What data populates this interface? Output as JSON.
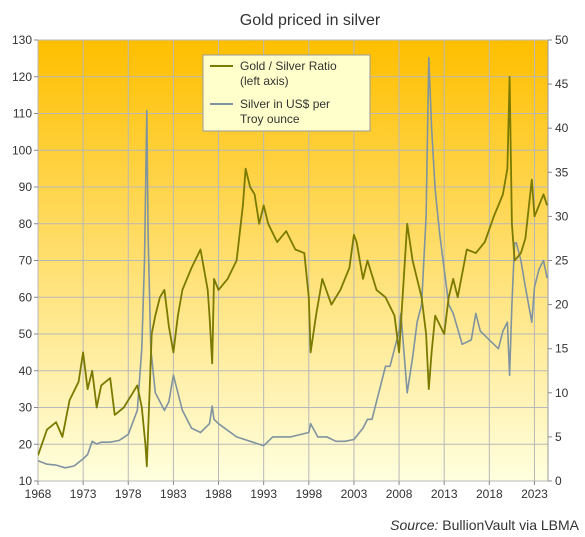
{
  "chart_data": {
    "type": "line",
    "title": "Gold priced in silver",
    "source_label": "Source:",
    "source_text": "BullionVault via LBMA",
    "x_ticks": [
      "1968",
      "1973",
      "1978",
      "1983",
      "1988",
      "1993",
      "1998",
      "2003",
      "2008",
      "2013",
      "2018",
      "2023"
    ],
    "xlim": [
      1968,
      2024.5
    ],
    "y_left": {
      "ticks": [
        10,
        20,
        30,
        40,
        50,
        60,
        70,
        80,
        90,
        100,
        110,
        120,
        130
      ],
      "range": [
        10,
        130
      ]
    },
    "y_right": {
      "ticks": [
        0,
        5,
        10,
        15,
        20,
        25,
        30,
        35,
        40,
        45,
        50
      ],
      "range": [
        0,
        50
      ]
    },
    "grid": true,
    "legend_position": "top-center",
    "colors": {
      "ratio": "#7a7a00",
      "silver": "#7f93a0",
      "plot_top": "#ffbf00",
      "plot_bottom": "#ffffdf",
      "legend_bg": "#ffffcc"
    },
    "series": [
      {
        "name": "Gold / Silver Ratio (left axis)",
        "legend_lines": [
          "Gold / Silver Ratio",
          "(left axis)"
        ],
        "axis": "left",
        "x": [
          1968.0,
          1969.0,
          1970.0,
          1970.7,
          1971.5,
          1972.5,
          1973.0,
          1973.5,
          1974.0,
          1974.5,
          1975.0,
          1976.0,
          1976.5,
          1977.5,
          1978.5,
          1979.0,
          1979.5,
          1979.9,
          1980.05,
          1980.3,
          1980.6,
          1981.0,
          1981.5,
          1982.0,
          1982.5,
          1983.0,
          1983.5,
          1984.0,
          1985.0,
          1986.0,
          1986.8,
          1987.0,
          1987.3,
          1987.5,
          1988.0,
          1989.0,
          1990.0,
          1990.7,
          1991.0,
          1991.5,
          1992.0,
          1992.5,
          1993.0,
          1993.5,
          1994.5,
          1995.5,
          1996.5,
          1997.5,
          1998.0,
          1998.2,
          1998.8,
          1999.5,
          2000.5,
          2001.5,
          2002.5,
          2003.0,
          2003.3,
          2004.0,
          2004.5,
          2005.5,
          2006.5,
          2007.5,
          2008.0,
          2008.9,
          2009.5,
          2010.5,
          2011.0,
          2011.3,
          2011.6,
          2012.0,
          2013.0,
          2013.5,
          2014.0,
          2014.5,
          2015.5,
          2016.5,
          2017.5,
          2018.5,
          2019.0,
          2019.5,
          2020.0,
          2020.25,
          2020.5,
          2020.8,
          2021.5,
          2022.0,
          2022.7,
          2023.0,
          2023.5,
          2024.0,
          2024.4
        ],
        "y": [
          17,
          24,
          26,
          22,
          32,
          37,
          45,
          35,
          40,
          30,
          36,
          38,
          28,
          30,
          34,
          36,
          30,
          20,
          14,
          30,
          50,
          55,
          60,
          62,
          52,
          45,
          55,
          62,
          68,
          73,
          62,
          55,
          42,
          65,
          62,
          65,
          70,
          85,
          95,
          90,
          88,
          80,
          85,
          80,
          75,
          78,
          73,
          72,
          60,
          45,
          55,
          65,
          58,
          62,
          68,
          77,
          75,
          65,
          70,
          62,
          60,
          55,
          45,
          80,
          70,
          60,
          50,
          35,
          45,
          55,
          50,
          60,
          65,
          60,
          73,
          72,
          75,
          82,
          85,
          88,
          95,
          120,
          80,
          70,
          72,
          76,
          92,
          82,
          85,
          88,
          85
        ]
      },
      {
        "name": "Silver in US$ per Troy ounce",
        "legend_lines": [
          "Silver in US$ per",
          "Troy ounce"
        ],
        "axis": "right",
        "x": [
          1968.0,
          1969.0,
          1970.0,
          1971.0,
          1972.0,
          1973.0,
          1973.5,
          1974.0,
          1974.5,
          1975.0,
          1976.0,
          1977.0,
          1978.0,
          1979.0,
          1979.5,
          1979.8,
          1980.05,
          1980.2,
          1980.5,
          1981.0,
          1982.0,
          1982.5,
          1983.0,
          1984.0,
          1985.0,
          1986.0,
          1987.0,
          1987.3,
          1987.5,
          1988.0,
          1990.0,
          1993.0,
          1994.0,
          1996.0,
          1998.0,
          1998.2,
          1999.0,
          2000.0,
          2001.0,
          2002.0,
          2003.0,
          2004.0,
          2004.5,
          2005.0,
          2006.0,
          2006.5,
          2007.0,
          2008.0,
          2008.2,
          2008.9,
          2009.5,
          2010.0,
          2010.5,
          2011.0,
          2011.3,
          2011.6,
          2012.0,
          2012.5,
          2013.0,
          2013.5,
          2014.0,
          2015.0,
          2016.0,
          2016.5,
          2017.0,
          2018.0,
          2019.0,
          2019.5,
          2020.0,
          2020.25,
          2020.5,
          2020.8,
          2021.0,
          2021.5,
          2022.0,
          2022.7,
          2023.0,
          2023.5,
          2024.0,
          2024.4
        ],
        "y": [
          2.3,
          1.9,
          1.8,
          1.5,
          1.7,
          2.5,
          3.0,
          4.5,
          4.2,
          4.4,
          4.4,
          4.6,
          5.3,
          8,
          15,
          25,
          42,
          28,
          15,
          10,
          8,
          9,
          12,
          8,
          6,
          5.5,
          6.5,
          8.5,
          7,
          6.5,
          5,
          4,
          5,
          5,
          5.5,
          6.5,
          5,
          5,
          4.5,
          4.5,
          4.7,
          6,
          7,
          7,
          11,
          13,
          13,
          17,
          19,
          10,
          14,
          18,
          20,
          30,
          48,
          40,
          33,
          28,
          24,
          20,
          19,
          15.5,
          16,
          19,
          17,
          16,
          15,
          17,
          18,
          12,
          20,
          27,
          27,
          25,
          22,
          18,
          22,
          24,
          25,
          23
        ]
      }
    ]
  }
}
